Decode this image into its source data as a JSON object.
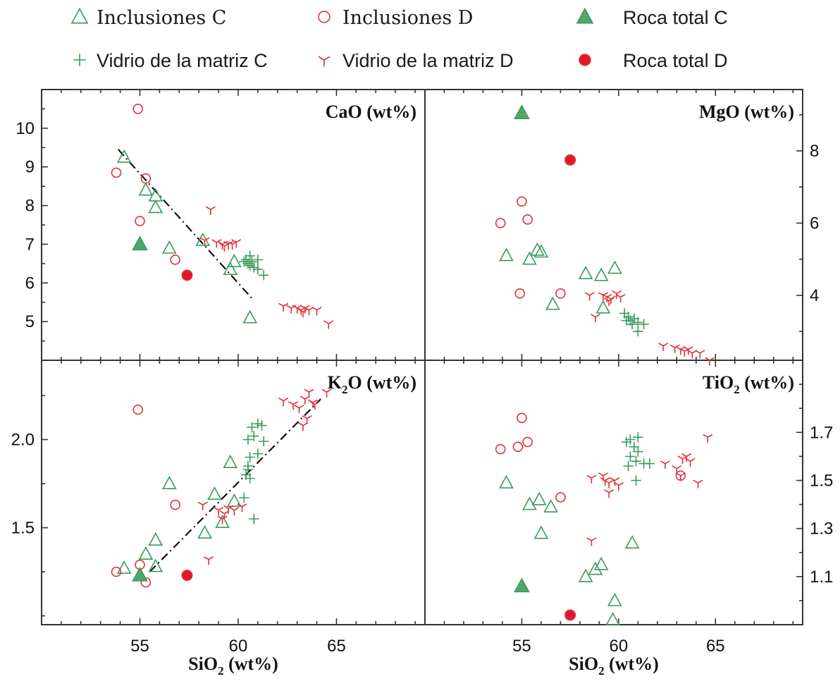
{
  "colors": {
    "C": "#3a9a5c",
    "D": "#e0303a",
    "C_fill": "#4fa86a",
    "D_fill": "#e01a2a"
  },
  "legend": [
    {
      "key": "inc_c",
      "label": "Inclusiones C",
      "marker": "triangle-open",
      "group": "C"
    },
    {
      "key": "inc_d",
      "label": "Inclusiones D",
      "marker": "circle-open",
      "group": "D"
    },
    {
      "key": "roca_c",
      "label": "Roca total C",
      "marker": "triangle-filled",
      "group": "C"
    },
    {
      "key": "vid_c",
      "label": "Vidrio de la matriz C",
      "marker": "plus",
      "group": "C"
    },
    {
      "key": "vid_d",
      "label": "Vidrio de la matriz D",
      "marker": "tri-star",
      "group": "D"
    },
    {
      "key": "roca_d",
      "label": "Roca total D",
      "marker": "circle-filled",
      "group": "D"
    }
  ],
  "xlabel": {
    "main": "SiO",
    "sub": "2",
    "tail": " (wt%)"
  },
  "chart_data": [
    {
      "type": "scatter",
      "title": "CaO (wt%)",
      "title_parts": {
        "main": "CaO (wt%)",
        "sub": "",
        "tail": ""
      },
      "xlim": [
        50,
        69.5
      ],
      "ylim": [
        4.0,
        11.0
      ],
      "yticks": [
        5,
        6,
        7,
        8,
        9,
        10
      ],
      "ytick_side": "left",
      "xticks_labeled": false,
      "trend_line": [
        [
          53.9,
          9.45
        ],
        [
          60.7,
          5.6
        ]
      ],
      "series": {
        "inc_c": [
          [
            54.2,
            9.25
          ],
          [
            55.3,
            8.4
          ],
          [
            55.8,
            8.25
          ],
          [
            55.8,
            7.95
          ],
          [
            56.5,
            6.9
          ],
          [
            58.2,
            7.1
          ],
          [
            59.6,
            6.35
          ],
          [
            59.8,
            6.55
          ],
          [
            60.6,
            5.1
          ]
        ],
        "inc_d": [
          [
            53.8,
            8.85
          ],
          [
            54.9,
            10.5
          ],
          [
            55.3,
            8.7
          ],
          [
            55.0,
            7.6
          ],
          [
            56.8,
            6.6
          ]
        ],
        "roca_c": [
          [
            55.0,
            7.0
          ]
        ],
        "roca_d": [
          [
            57.4,
            6.2
          ]
        ],
        "vid_c": [
          [
            60.4,
            6.6
          ],
          [
            60.5,
            6.5
          ],
          [
            60.6,
            6.7
          ],
          [
            60.7,
            6.55
          ],
          [
            60.8,
            6.4
          ],
          [
            61.0,
            6.6
          ],
          [
            61.0,
            6.35
          ],
          [
            61.3,
            6.2
          ],
          [
            60.3,
            6.55
          ],
          [
            60.6,
            6.45
          ]
        ],
        "vid_d": [
          [
            58.6,
            7.9
          ],
          [
            58.3,
            7.1
          ],
          [
            58.9,
            7.05
          ],
          [
            59.2,
            7.0
          ],
          [
            59.5,
            7.0
          ],
          [
            59.9,
            7.05
          ],
          [
            59.3,
            6.95
          ],
          [
            59.7,
            7.0
          ],
          [
            62.3,
            5.4
          ],
          [
            62.7,
            5.35
          ],
          [
            63.0,
            5.35
          ],
          [
            63.2,
            5.3
          ],
          [
            63.4,
            5.35
          ],
          [
            63.6,
            5.3
          ],
          [
            63.3,
            5.25
          ],
          [
            64.0,
            5.3
          ],
          [
            64.6,
            4.95
          ]
        ]
      }
    },
    {
      "type": "scatter",
      "title": "MgO (wt%)",
      "title_parts": {
        "main": "MgO (wt%)",
        "sub": "",
        "tail": ""
      },
      "xlim": [
        50,
        69.5
      ],
      "ylim": [
        2.2,
        9.7
      ],
      "yticks": [
        4,
        6,
        8
      ],
      "ytick_side": "right",
      "xticks_labeled": false,
      "trend_line": null,
      "series": {
        "inc_c": [
          [
            54.2,
            5.1
          ],
          [
            55.4,
            5.0
          ],
          [
            55.8,
            5.25
          ],
          [
            56.0,
            5.2
          ],
          [
            56.6,
            3.75
          ],
          [
            58.3,
            4.6
          ],
          [
            59.1,
            4.55
          ],
          [
            59.8,
            4.75
          ],
          [
            59.2,
            3.65
          ]
        ],
        "inc_d": [
          [
            53.9,
            6.0
          ],
          [
            55.0,
            6.6
          ],
          [
            55.3,
            6.1
          ],
          [
            54.9,
            4.05
          ],
          [
            57.0,
            4.05
          ]
        ],
        "roca_c": [
          [
            55.0,
            9.05
          ]
        ],
        "roca_d": [
          [
            57.5,
            7.75
          ]
        ],
        "vid_c": [
          [
            60.3,
            3.5
          ],
          [
            60.5,
            3.4
          ],
          [
            60.6,
            3.3
          ],
          [
            60.8,
            3.35
          ],
          [
            61.0,
            3.25
          ],
          [
            61.3,
            3.2
          ],
          [
            60.4,
            3.3
          ],
          [
            60.7,
            3.2
          ],
          [
            61.0,
            3.0
          ]
        ],
        "vid_d": [
          [
            58.5,
            4.0
          ],
          [
            58.8,
            3.4
          ],
          [
            59.2,
            4.0
          ],
          [
            59.4,
            3.95
          ],
          [
            59.6,
            3.9
          ],
          [
            59.9,
            4.05
          ],
          [
            60.1,
            3.95
          ],
          [
            59.5,
            3.85
          ],
          [
            62.3,
            2.6
          ],
          [
            62.9,
            2.55
          ],
          [
            63.2,
            2.5
          ],
          [
            63.4,
            2.45
          ],
          [
            63.6,
            2.5
          ],
          [
            63.8,
            2.4
          ],
          [
            64.2,
            2.4
          ],
          [
            64.7,
            2.2
          ]
        ]
      }
    },
    {
      "type": "scatter",
      "title": "K2O (wt%)",
      "title_parts": {
        "main": "K",
        "sub": "2",
        "tail": "O (wt%)"
      },
      "xlim": [
        50,
        69.5
      ],
      "ylim": [
        0.95,
        2.45
      ],
      "yticks": [
        1.5,
        2.0
      ],
      "ytick_side": "left",
      "xticks_labeled": true,
      "trend_line": [
        [
          55.5,
          1.25
        ],
        [
          64.2,
          2.23
        ]
      ],
      "series": {
        "inc_c": [
          [
            54.2,
            1.27
          ],
          [
            55.3,
            1.35
          ],
          [
            55.8,
            1.43
          ],
          [
            55.8,
            1.28
          ],
          [
            56.5,
            1.75
          ],
          [
            58.3,
            1.47
          ],
          [
            58.8,
            1.69
          ],
          [
            59.2,
            1.53
          ],
          [
            59.6,
            1.87
          ],
          [
            59.8,
            1.65
          ]
        ],
        "inc_d": [
          [
            53.8,
            1.25
          ],
          [
            54.9,
            2.17
          ],
          [
            55.0,
            1.29
          ],
          [
            55.3,
            1.19
          ],
          [
            56.8,
            1.63
          ]
        ],
        "roca_c": [
          [
            55.0,
            1.23
          ]
        ],
        "roca_d": [
          [
            57.4,
            1.23
          ]
        ],
        "vid_c": [
          [
            60.4,
            1.8
          ],
          [
            60.5,
            1.83
          ],
          [
            60.6,
            1.78
          ],
          [
            60.6,
            1.9
          ],
          [
            60.7,
            2.07
          ],
          [
            61.0,
            2.09
          ],
          [
            61.2,
            2.08
          ],
          [
            60.5,
            2.0
          ],
          [
            60.8,
            2.02
          ],
          [
            61.0,
            1.92
          ],
          [
            61.3,
            1.99
          ],
          [
            60.3,
            1.67
          ],
          [
            60.8,
            1.55
          ],
          [
            60.5,
            1.85
          ]
        ],
        "vid_d": [
          [
            58.2,
            1.63
          ],
          [
            58.5,
            1.32
          ],
          [
            59.0,
            1.6
          ],
          [
            59.3,
            1.58
          ],
          [
            59.5,
            1.61
          ],
          [
            59.8,
            1.6
          ],
          [
            60.2,
            1.62
          ],
          [
            59.2,
            1.55
          ],
          [
            62.3,
            2.22
          ],
          [
            62.8,
            2.2
          ],
          [
            63.1,
            2.18
          ],
          [
            63.4,
            2.23
          ],
          [
            63.6,
            2.27
          ],
          [
            63.8,
            2.21
          ],
          [
            64.5,
            2.27
          ],
          [
            63.3,
            2.08
          ],
          [
            63.5,
            2.12
          ],
          [
            63.9,
            2.2
          ]
        ]
      }
    },
    {
      "type": "scatter",
      "title": "TiO2 (wt%)",
      "title_parts": {
        "main": "TiO",
        "sub": "2",
        "tail": " (wt%)"
      },
      "xlim": [
        50,
        69.5
      ],
      "ylim": [
        0.9,
        2.0
      ],
      "yticks": [
        1.1,
        1.3,
        1.5,
        1.7
      ],
      "ytick_side": "right",
      "xticks_labeled": true,
      "trend_line": null,
      "series": {
        "inc_c": [
          [
            54.2,
            1.49
          ],
          [
            55.4,
            1.4
          ],
          [
            55.9,
            1.42
          ],
          [
            56.5,
            1.39
          ],
          [
            56.0,
            1.28
          ],
          [
            58.3,
            1.1
          ],
          [
            58.8,
            1.13
          ],
          [
            59.1,
            1.15
          ],
          [
            59.8,
            1.0
          ],
          [
            59.7,
            0.92
          ],
          [
            60.7,
            1.24
          ]
        ],
        "inc_d": [
          [
            53.9,
            1.63
          ],
          [
            54.8,
            1.64
          ],
          [
            55.0,
            1.76
          ],
          [
            55.3,
            1.66
          ],
          [
            57.0,
            1.43
          ],
          [
            63.2,
            1.52
          ]
        ],
        "roca_c": [
          [
            55.0,
            1.06
          ]
        ],
        "roca_d": [
          [
            57.5,
            0.94
          ]
        ],
        "vid_c": [
          [
            60.4,
            1.66
          ],
          [
            60.6,
            1.67
          ],
          [
            60.8,
            1.64
          ],
          [
            61.0,
            1.68
          ],
          [
            60.6,
            1.6
          ],
          [
            60.9,
            1.58
          ],
          [
            61.3,
            1.57
          ],
          [
            61.6,
            1.57
          ],
          [
            60.5,
            1.56
          ],
          [
            60.9,
            1.5
          ],
          [
            61.0,
            1.62
          ]
        ],
        "vid_d": [
          [
            58.6,
            1.25
          ],
          [
            58.6,
            1.51
          ],
          [
            59.2,
            1.52
          ],
          [
            59.5,
            1.49
          ],
          [
            59.8,
            1.5
          ],
          [
            60.0,
            1.48
          ],
          [
            59.5,
            1.45
          ],
          [
            59.3,
            1.5
          ],
          [
            62.4,
            1.57
          ],
          [
            63.0,
            1.55
          ],
          [
            63.3,
            1.59
          ],
          [
            63.5,
            1.6
          ],
          [
            63.7,
            1.58
          ],
          [
            63.2,
            1.52
          ],
          [
            64.1,
            1.49
          ],
          [
            64.6,
            1.68
          ]
        ]
      }
    }
  ]
}
